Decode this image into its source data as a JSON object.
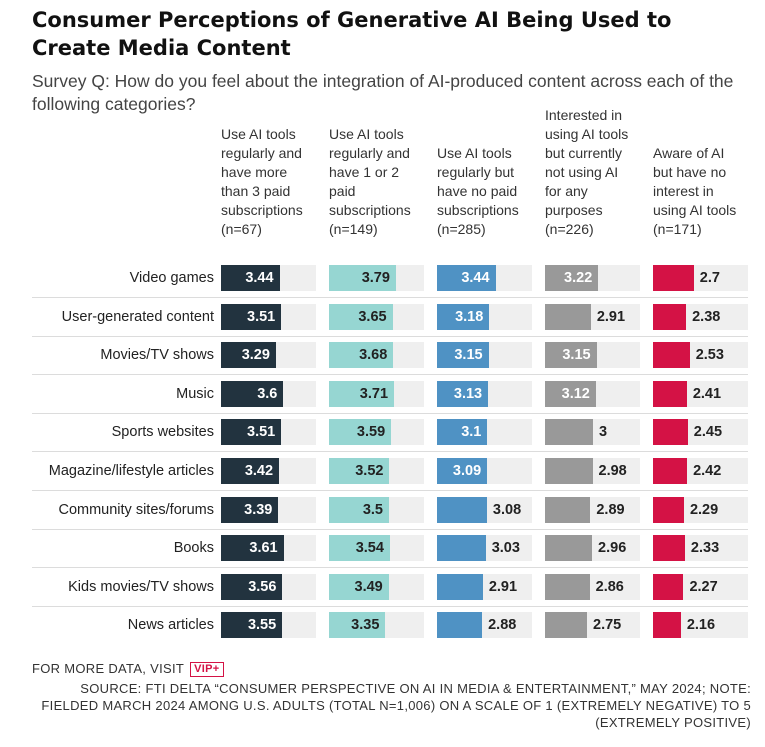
{
  "title": "Consumer Perceptions of Generative AI Being Used to Create Media Content",
  "subtitle": "Survey Q: How do you feel about the integration of AI-produced content across each of the following categories?",
  "footer": {
    "visit": "FOR MORE DATA, VISIT",
    "badge": "VIP+",
    "source": "SOURCE: FTI DELTA “CONSUMER PERSPECTIVE ON AI IN MEDIA & ENTERTAINMENT,” MAY 2024; NOTE: FIELDED MARCH 2024 AMONG U.S. ADULTS (TOTAL N=1,006) ON A SCALE OF 1 (EXTREMELY NEGATIVE) TO 5 (EXTREMELY POSITIVE)"
  },
  "colors": {
    "series": [
      "#22333f",
      "#96d6d2",
      "#4f92c4",
      "#999999",
      "#d41245"
    ],
    "value_text": [
      "#ffffff",
      "#222222",
      "#ffffff",
      "#ffffff",
      "#ffffff"
    ],
    "track": "#efefef"
  },
  "chart_data": {
    "type": "bar",
    "orientation": "horizontal",
    "layout": "small-multiples",
    "xlim": [
      1,
      5
    ],
    "categories": [
      "Video games",
      "User-generated content",
      "Movies/TV shows",
      "Music",
      "Sports websites",
      "Magazine/lifestyle articles",
      "Community sites/forums",
      "Books",
      "Kids movies/TV shows",
      "News articles"
    ],
    "series": [
      {
        "name": "Use AI tools regularly and have more than 3 paid subscriptions (n=67)",
        "values": [
          3.44,
          3.51,
          3.29,
          3.6,
          3.51,
          3.42,
          3.39,
          3.61,
          3.56,
          3.55
        ]
      },
      {
        "name": "Use AI tools regularly and have 1 or 2 paid subscriptions (n=149)",
        "values": [
          3.79,
          3.65,
          3.68,
          3.71,
          3.59,
          3.52,
          3.5,
          3.54,
          3.49,
          3.35
        ]
      },
      {
        "name": "Use AI tools regularly but have no paid subscriptions (n=285)",
        "values": [
          3.44,
          3.18,
          3.15,
          3.13,
          3.1,
          3.09,
          3.08,
          3.03,
          2.91,
          2.88
        ]
      },
      {
        "name": "Interested in using AI tools but currently not using AI for any purposes (n=226)",
        "values": [
          3.22,
          2.91,
          3.15,
          3.12,
          3,
          2.98,
          2.89,
          2.96,
          2.86,
          2.75
        ]
      },
      {
        "name": "Aware of AI but have no interest in using AI tools (n=171)",
        "values": [
          2.7,
          2.38,
          2.53,
          2.41,
          2.45,
          2.42,
          2.29,
          2.33,
          2.27,
          2.16
        ]
      }
    ],
    "column_headers": [
      [
        "Use AI tools",
        "regularly and",
        "have more",
        "than 3 paid",
        "subscriptions",
        "(n=67)"
      ],
      [
        "Use AI tools",
        "regularly and",
        "have 1 or 2",
        "paid",
        "subscriptions",
        "(n=149)"
      ],
      [
        "Use AI tools",
        "regularly but",
        "have no paid",
        "subscriptions",
        "(n=285)"
      ],
      [
        "Interested in",
        "using AI tools",
        "but currently",
        "not using AI",
        "for any",
        "purposes",
        "(n=226)"
      ],
      [
        "Aware of AI",
        "but have no",
        "interest in",
        "using AI tools",
        "(n=171)"
      ]
    ]
  }
}
